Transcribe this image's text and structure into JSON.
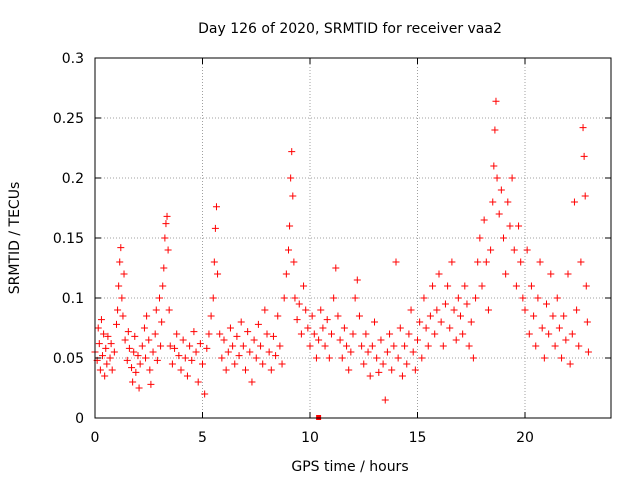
{
  "chart_data": {
    "type": "scatter",
    "title": "Day 126 of 2020, SRMTID for receiver vaa2",
    "xlabel": "GPS time / hours",
    "ylabel": "SRMTID / TECUs",
    "xlim": [
      0,
      24
    ],
    "ylim": [
      0,
      0.3
    ],
    "x_ticks": [
      0,
      5,
      10,
      15,
      20
    ],
    "x_tick_labels": [
      "0",
      "5",
      "10",
      "15",
      "20"
    ],
    "y_ticks": [
      0,
      0.05,
      0.1,
      0.15,
      0.2,
      0.25,
      0.3
    ],
    "y_tick_labels": [
      "0",
      "0.05",
      "0.1",
      "0.15",
      "0.2",
      "0.25",
      "0.3"
    ],
    "grid": true,
    "marker": "plus",
    "colors": {
      "marker": "#ff0000",
      "grid": "#a0a0a0",
      "axis": "#000000"
    },
    "series": [
      {
        "name": "SRMTID",
        "points": [
          [
            0.0,
            0.055
          ],
          [
            0.1,
            0.048
          ],
          [
            0.15,
            0.075
          ],
          [
            0.2,
            0.062
          ],
          [
            0.25,
            0.04
          ],
          [
            0.3,
            0.082
          ],
          [
            0.35,
            0.052
          ],
          [
            0.4,
            0.07
          ],
          [
            0.45,
            0.035
          ],
          [
            0.5,
            0.058
          ],
          [
            0.55,
            0.045
          ],
          [
            0.6,
            0.068
          ],
          [
            0.7,
            0.05
          ],
          [
            0.75,
            0.062
          ],
          [
            0.8,
            0.04
          ],
          [
            0.9,
            0.055
          ],
          [
            1.0,
            0.078
          ],
          [
            1.05,
            0.09
          ],
          [
            1.1,
            0.11
          ],
          [
            1.15,
            0.13
          ],
          [
            1.2,
            0.142
          ],
          [
            1.25,
            0.1
          ],
          [
            1.3,
            0.085
          ],
          [
            1.35,
            0.12
          ],
          [
            1.4,
            0.065
          ],
          [
            1.5,
            0.048
          ],
          [
            1.55,
            0.072
          ],
          [
            1.6,
            0.058
          ],
          [
            1.7,
            0.042
          ],
          [
            1.75,
            0.03
          ],
          [
            1.8,
            0.055
          ],
          [
            1.85,
            0.068
          ],
          [
            1.9,
            0.038
          ],
          [
            2.0,
            0.052
          ],
          [
            2.05,
            0.025
          ],
          [
            2.1,
            0.045
          ],
          [
            2.2,
            0.06
          ],
          [
            2.3,
            0.075
          ],
          [
            2.35,
            0.05
          ],
          [
            2.4,
            0.085
          ],
          [
            2.5,
            0.065
          ],
          [
            2.55,
            0.04
          ],
          [
            2.6,
            0.028
          ],
          [
            2.7,
            0.055
          ],
          [
            2.8,
            0.07
          ],
          [
            2.85,
            0.09
          ],
          [
            2.9,
            0.048
          ],
          [
            3.0,
            0.1
          ],
          [
            3.05,
            0.06
          ],
          [
            3.1,
            0.08
          ],
          [
            3.15,
            0.11
          ],
          [
            3.2,
            0.125
          ],
          [
            3.25,
            0.15
          ],
          [
            3.3,
            0.162
          ],
          [
            3.35,
            0.168
          ],
          [
            3.4,
            0.14
          ],
          [
            3.45,
            0.09
          ],
          [
            3.5,
            0.06
          ],
          [
            3.6,
            0.045
          ],
          [
            3.7,
            0.058
          ],
          [
            3.8,
            0.07
          ],
          [
            3.9,
            0.052
          ],
          [
            4.0,
            0.04
          ],
          [
            4.1,
            0.065
          ],
          [
            4.2,
            0.05
          ],
          [
            4.3,
            0.035
          ],
          [
            4.4,
            0.06
          ],
          [
            4.5,
            0.048
          ],
          [
            4.6,
            0.072
          ],
          [
            4.7,
            0.055
          ],
          [
            4.8,
            0.03
          ],
          [
            4.9,
            0.062
          ],
          [
            5.0,
            0.045
          ],
          [
            5.1,
            0.02
          ],
          [
            5.2,
            0.058
          ],
          [
            5.3,
            0.07
          ],
          [
            5.4,
            0.085
          ],
          [
            5.5,
            0.1
          ],
          [
            5.55,
            0.13
          ],
          [
            5.6,
            0.158
          ],
          [
            5.65,
            0.176
          ],
          [
            5.7,
            0.12
          ],
          [
            5.8,
            0.07
          ],
          [
            5.9,
            0.05
          ],
          [
            6.0,
            0.065
          ],
          [
            6.1,
            0.04
          ],
          [
            6.2,
            0.055
          ],
          [
            6.3,
            0.075
          ],
          [
            6.4,
            0.06
          ],
          [
            6.5,
            0.045
          ],
          [
            6.6,
            0.068
          ],
          [
            6.7,
            0.052
          ],
          [
            6.8,
            0.08
          ],
          [
            6.9,
            0.06
          ],
          [
            7.0,
            0.04
          ],
          [
            7.1,
            0.072
          ],
          [
            7.2,
            0.055
          ],
          [
            7.3,
            0.03
          ],
          [
            7.4,
            0.065
          ],
          [
            7.5,
            0.05
          ],
          [
            7.6,
            0.078
          ],
          [
            7.7,
            0.06
          ],
          [
            7.8,
            0.045
          ],
          [
            7.9,
            0.09
          ],
          [
            8.0,
            0.07
          ],
          [
            8.1,
            0.055
          ],
          [
            8.2,
            0.04
          ],
          [
            8.3,
            0.068
          ],
          [
            8.4,
            0.052
          ],
          [
            8.5,
            0.085
          ],
          [
            8.6,
            0.06
          ],
          [
            8.7,
            0.045
          ],
          [
            8.8,
            0.1
          ],
          [
            8.9,
            0.12
          ],
          [
            9.0,
            0.14
          ],
          [
            9.05,
            0.16
          ],
          [
            9.1,
            0.2
          ],
          [
            9.15,
            0.222
          ],
          [
            9.2,
            0.185
          ],
          [
            9.25,
            0.13
          ],
          [
            9.3,
            0.1
          ],
          [
            9.4,
            0.082
          ],
          [
            9.5,
            0.095
          ],
          [
            9.6,
            0.07
          ],
          [
            9.7,
            0.11
          ],
          [
            9.8,
            0.09
          ],
          [
            9.9,
            0.075
          ],
          [
            10.0,
            0.06
          ],
          [
            10.1,
            0.085
          ],
          [
            10.2,
            0.07
          ],
          [
            10.3,
            0.05
          ],
          [
            10.4,
            0.065
          ],
          [
            10.5,
            0.09
          ],
          [
            10.6,
            0.075
          ],
          [
            10.7,
            0.06
          ],
          [
            10.8,
            0.082
          ],
          [
            10.9,
            0.05
          ],
          [
            11.0,
            0.07
          ],
          [
            11.1,
            0.1
          ],
          [
            11.2,
            0.125
          ],
          [
            11.3,
            0.085
          ],
          [
            11.4,
            0.065
          ],
          [
            11.5,
            0.05
          ],
          [
            11.6,
            0.075
          ],
          [
            11.7,
            0.06
          ],
          [
            11.8,
            0.04
          ],
          [
            11.9,
            0.055
          ],
          [
            12.0,
            0.07
          ],
          [
            12.1,
            0.1
          ],
          [
            12.2,
            0.115
          ],
          [
            12.3,
            0.085
          ],
          [
            12.4,
            0.06
          ],
          [
            12.5,
            0.045
          ],
          [
            12.6,
            0.07
          ],
          [
            12.7,
            0.055
          ],
          [
            12.8,
            0.035
          ],
          [
            12.9,
            0.06
          ],
          [
            13.0,
            0.08
          ],
          [
            13.1,
            0.05
          ],
          [
            13.2,
            0.038
          ],
          [
            13.3,
            0.065
          ],
          [
            13.4,
            0.045
          ],
          [
            13.5,
            0.015
          ],
          [
            13.6,
            0.055
          ],
          [
            13.7,
            0.07
          ],
          [
            13.8,
            0.04
          ],
          [
            13.9,
            0.06
          ],
          [
            14.0,
            0.13
          ],
          [
            14.1,
            0.05
          ],
          [
            14.2,
            0.075
          ],
          [
            14.3,
            0.035
          ],
          [
            14.4,
            0.06
          ],
          [
            14.5,
            0.045
          ],
          [
            14.6,
            0.07
          ],
          [
            14.7,
            0.09
          ],
          [
            14.8,
            0.055
          ],
          [
            14.9,
            0.04
          ],
          [
            15.0,
            0.065
          ],
          [
            15.1,
            0.08
          ],
          [
            15.2,
            0.05
          ],
          [
            15.3,
            0.1
          ],
          [
            15.4,
            0.075
          ],
          [
            15.5,
            0.06
          ],
          [
            15.6,
            0.085
          ],
          [
            15.7,
            0.11
          ],
          [
            15.8,
            0.07
          ],
          [
            15.9,
            0.09
          ],
          [
            16.0,
            0.12
          ],
          [
            16.1,
            0.08
          ],
          [
            16.2,
            0.06
          ],
          [
            16.3,
            0.095
          ],
          [
            16.4,
            0.11
          ],
          [
            16.5,
            0.075
          ],
          [
            16.6,
            0.13
          ],
          [
            16.7,
            0.09
          ],
          [
            16.8,
            0.065
          ],
          [
            16.9,
            0.1
          ],
          [
            17.0,
            0.085
          ],
          [
            17.1,
            0.07
          ],
          [
            17.2,
            0.11
          ],
          [
            17.3,
            0.095
          ],
          [
            17.4,
            0.06
          ],
          [
            17.5,
            0.08
          ],
          [
            17.6,
            0.05
          ],
          [
            17.7,
            0.1
          ],
          [
            17.8,
            0.13
          ],
          [
            17.9,
            0.15
          ],
          [
            18.0,
            0.11
          ],
          [
            18.1,
            0.165
          ],
          [
            18.2,
            0.13
          ],
          [
            18.3,
            0.09
          ],
          [
            18.4,
            0.14
          ],
          [
            18.5,
            0.18
          ],
          [
            18.55,
            0.21
          ],
          [
            18.6,
            0.24
          ],
          [
            18.65,
            0.264
          ],
          [
            18.7,
            0.2
          ],
          [
            18.8,
            0.17
          ],
          [
            18.9,
            0.19
          ],
          [
            19.0,
            0.15
          ],
          [
            19.1,
            0.12
          ],
          [
            19.2,
            0.18
          ],
          [
            19.3,
            0.16
          ],
          [
            19.4,
            0.2
          ],
          [
            19.5,
            0.14
          ],
          [
            19.6,
            0.11
          ],
          [
            19.7,
            0.16
          ],
          [
            19.8,
            0.13
          ],
          [
            19.9,
            0.1
          ],
          [
            20.0,
            0.09
          ],
          [
            20.1,
            0.14
          ],
          [
            20.2,
            0.07
          ],
          [
            20.3,
            0.11
          ],
          [
            20.4,
            0.085
          ],
          [
            20.5,
            0.06
          ],
          [
            20.6,
            0.1
          ],
          [
            20.7,
            0.13
          ],
          [
            20.8,
            0.075
          ],
          [
            20.9,
            0.05
          ],
          [
            21.0,
            0.095
          ],
          [
            21.1,
            0.07
          ],
          [
            21.2,
            0.12
          ],
          [
            21.3,
            0.085
          ],
          [
            21.4,
            0.06
          ],
          [
            21.5,
            0.1
          ],
          [
            21.6,
            0.075
          ],
          [
            21.7,
            0.05
          ],
          [
            21.8,
            0.085
          ],
          [
            21.9,
            0.065
          ],
          [
            22.0,
            0.12
          ],
          [
            22.1,
            0.045
          ],
          [
            22.2,
            0.07
          ],
          [
            22.3,
            0.18
          ],
          [
            22.4,
            0.09
          ],
          [
            22.5,
            0.06
          ],
          [
            22.6,
            0.13
          ],
          [
            22.7,
            0.242
          ],
          [
            22.75,
            0.218
          ],
          [
            22.8,
            0.185
          ],
          [
            22.85,
            0.11
          ],
          [
            22.9,
            0.08
          ],
          [
            22.95,
            0.055
          ]
        ]
      }
    ],
    "gap_marker": [
      10.4,
      0.0
    ]
  }
}
